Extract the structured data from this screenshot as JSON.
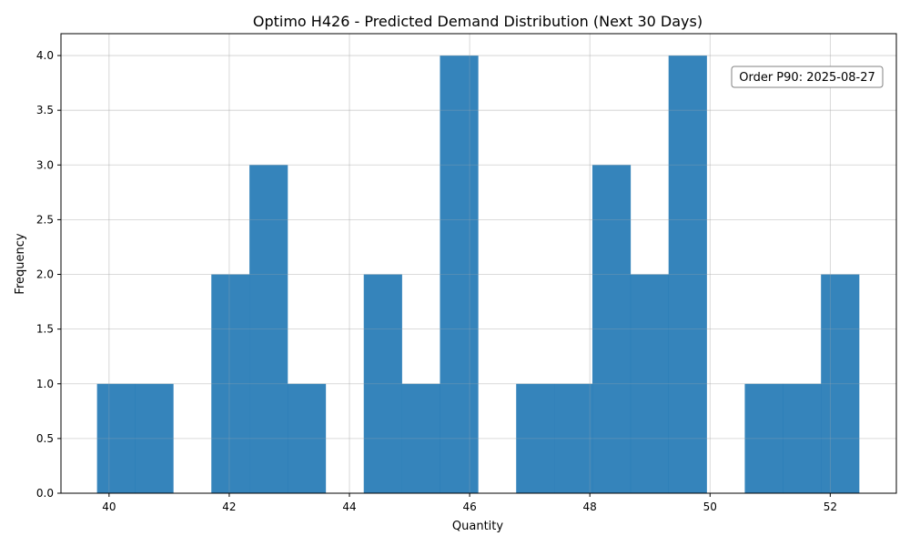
{
  "chart_data": {
    "type": "bar",
    "title": "Optimo H426 - Predicted Demand Distribution (Next 30 Days)",
    "xlabel": "Quantity",
    "ylabel": "Frequency",
    "xlim": [
      39.2,
      53.1
    ],
    "ylim": [
      0,
      4.2
    ],
    "grid": true,
    "bin_width": 0.634,
    "bins": [
      {
        "start": 39.8,
        "end": 40.434,
        "count": 1
      },
      {
        "start": 40.434,
        "end": 41.068,
        "count": 1
      },
      {
        "start": 41.068,
        "end": 41.702,
        "count": 0
      },
      {
        "start": 41.702,
        "end": 42.336,
        "count": 2
      },
      {
        "start": 42.336,
        "end": 42.97,
        "count": 3
      },
      {
        "start": 42.97,
        "end": 43.604,
        "count": 1
      },
      {
        "start": 43.604,
        "end": 44.238,
        "count": 0
      },
      {
        "start": 44.238,
        "end": 44.872,
        "count": 2
      },
      {
        "start": 44.872,
        "end": 45.506,
        "count": 1
      },
      {
        "start": 45.506,
        "end": 46.14,
        "count": 4
      },
      {
        "start": 46.14,
        "end": 46.774,
        "count": 0
      },
      {
        "start": 46.774,
        "end": 47.408,
        "count": 1
      },
      {
        "start": 47.408,
        "end": 48.042,
        "count": 1
      },
      {
        "start": 48.042,
        "end": 48.676,
        "count": 3
      },
      {
        "start": 48.676,
        "end": 49.31,
        "count": 2
      },
      {
        "start": 49.31,
        "end": 49.944,
        "count": 4
      },
      {
        "start": 49.944,
        "end": 50.578,
        "count": 0
      },
      {
        "start": 50.578,
        "end": 51.212,
        "count": 1
      },
      {
        "start": 51.212,
        "end": 51.846,
        "count": 1
      },
      {
        "start": 51.846,
        "end": 52.48,
        "count": 2
      }
    ],
    "x_ticks": [
      "40",
      "42",
      "44",
      "46",
      "48",
      "50",
      "52"
    ],
    "y_ticks": [
      "0.0",
      "0.5",
      "1.0",
      "1.5",
      "2.0",
      "2.5",
      "3.0",
      "3.5",
      "4.0"
    ],
    "annotation": "Order P90: 2025-08-27",
    "colors": {
      "bar": "#1f77b4"
    }
  }
}
